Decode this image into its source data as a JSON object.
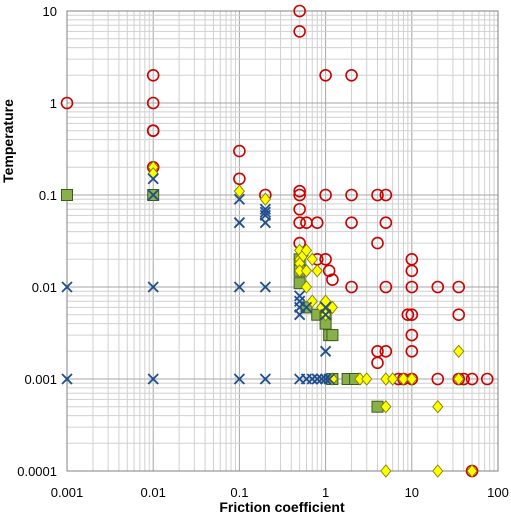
{
  "chart_data": {
    "type": "scatter",
    "xlabel": "Friction coefficient",
    "ylabel": "Temperature",
    "xscale": "log",
    "yscale": "log",
    "xlim": [
      0.001,
      100
    ],
    "ylim": [
      0.0001,
      10
    ],
    "x_ticks": [
      "0.001",
      "0.01",
      "0.1",
      "1",
      "10",
      "100"
    ],
    "y_ticks": [
      "0.0001",
      "0.001",
      "0.01",
      "0.1",
      "1",
      "10"
    ],
    "grid": true,
    "legend": "none",
    "series": [
      {
        "marker": "open-circle",
        "color": "#cc0000",
        "points": [
          [
            0.001,
            1
          ],
          [
            0.01,
            2
          ],
          [
            0.01,
            1
          ],
          [
            0.01,
            0.5
          ],
          [
            0.01,
            0.5
          ],
          [
            0.01,
            0.2
          ],
          [
            0.1,
            0.3
          ],
          [
            0.1,
            0.15
          ],
          [
            0.2,
            0.1
          ],
          [
            0.5,
            10
          ],
          [
            0.5,
            6
          ],
          [
            0.5,
            0.11
          ],
          [
            0.5,
            0.1
          ],
          [
            0.5,
            0.07
          ],
          [
            0.5,
            0.05
          ],
          [
            0.5,
            0.03
          ],
          [
            0.6,
            0.05
          ],
          [
            0.8,
            0.05
          ],
          [
            0.8,
            0.02
          ],
          [
            1,
            0.02
          ],
          [
            1,
            2
          ],
          [
            1,
            0.1
          ],
          [
            1.1,
            0.015
          ],
          [
            1.2,
            0.012
          ],
          [
            2,
            2
          ],
          [
            2,
            0.1
          ],
          [
            2,
            0.05
          ],
          [
            2,
            0.01
          ],
          [
            4,
            0.1
          ],
          [
            5,
            0.1
          ],
          [
            5,
            0.05
          ],
          [
            5,
            0.01
          ],
          [
            4,
            0.002
          ],
          [
            4,
            0.0015
          ],
          [
            5,
            0.002
          ],
          [
            4,
            0.03
          ],
          [
            10,
            0.02
          ],
          [
            10,
            0.015
          ],
          [
            10,
            0.01
          ],
          [
            9,
            0.005
          ],
          [
            10,
            0.005
          ],
          [
            10,
            0.003
          ],
          [
            10,
            0.002
          ],
          [
            7,
            0.001
          ],
          [
            8,
            0.001
          ],
          [
            10,
            0.001
          ],
          [
            20,
            0.01
          ],
          [
            20,
            0.001
          ],
          [
            35,
            0.01
          ],
          [
            35,
            0.005
          ],
          [
            35,
            0.001
          ],
          [
            40,
            0.001
          ],
          [
            50,
            0.001
          ],
          [
            75,
            0.001
          ],
          [
            50,
            0.0001
          ]
        ]
      },
      {
        "marker": "diamond",
        "color": "#ffff00",
        "points": [
          [
            0.01,
            0.2
          ],
          [
            0.01,
            0.17
          ],
          [
            0.1,
            0.11
          ],
          [
            0.2,
            0.09
          ],
          [
            0.5,
            0.025
          ],
          [
            0.5,
            0.02
          ],
          [
            0.5,
            0.018
          ],
          [
            0.5,
            0.015
          ],
          [
            0.55,
            0.022
          ],
          [
            0.6,
            0.025
          ],
          [
            0.6,
            0.015
          ],
          [
            0.7,
            0.02
          ],
          [
            0.8,
            0.015
          ],
          [
            0.6,
            0.01
          ],
          [
            0.7,
            0.007
          ],
          [
            0.9,
            0.006
          ],
          [
            1,
            0.007
          ],
          [
            1.2,
            0.006
          ],
          [
            1,
            0.005
          ],
          [
            1.2,
            0.001
          ],
          [
            2.5,
            0.001
          ],
          [
            3,
            0.001
          ],
          [
            5,
            0.001
          ],
          [
            6,
            0.001
          ],
          [
            8,
            0.001
          ],
          [
            10,
            0.001
          ],
          [
            35,
            0.002
          ],
          [
            35,
            0.001
          ],
          [
            5,
            0.0005
          ],
          [
            20,
            0.0005
          ],
          [
            5,
            0.0001
          ],
          [
            20,
            0.0001
          ],
          [
            50,
            0.0001
          ]
        ]
      },
      {
        "marker": "square",
        "color": "#8ab04a",
        "points": [
          [
            0.001,
            0.1
          ],
          [
            0.01,
            0.1
          ],
          [
            0.5,
            0.02
          ],
          [
            0.5,
            0.015
          ],
          [
            0.5,
            0.011
          ],
          [
            0.6,
            0.006
          ],
          [
            0.8,
            0.005
          ],
          [
            1,
            0.005
          ],
          [
            1,
            0.004
          ],
          [
            1,
            0.006
          ],
          [
            1.1,
            0.003
          ],
          [
            1.2,
            0.003
          ],
          [
            1.2,
            0.001
          ],
          [
            1.8,
            0.001
          ],
          [
            2.2,
            0.001
          ],
          [
            4,
            0.0005
          ]
        ]
      },
      {
        "marker": "x",
        "color": "#1f4e8c",
        "points": [
          [
            0.001,
            0.01
          ],
          [
            0.001,
            0.001
          ],
          [
            0.01,
            0.15
          ],
          [
            0.01,
            0.1
          ],
          [
            0.01,
            0.01
          ],
          [
            0.01,
            0.001
          ],
          [
            0.1,
            0.09
          ],
          [
            0.1,
            0.05
          ],
          [
            0.1,
            0.01
          ],
          [
            0.1,
            0.001
          ],
          [
            0.2,
            0.07
          ],
          [
            0.2,
            0.065
          ],
          [
            0.2,
            0.06
          ],
          [
            0.2,
            0.05
          ],
          [
            0.2,
            0.01
          ],
          [
            0.2,
            0.001
          ],
          [
            0.5,
            0.008
          ],
          [
            0.5,
            0.007
          ],
          [
            0.5,
            0.006
          ],
          [
            0.5,
            0.005
          ],
          [
            0.5,
            0.001
          ],
          [
            0.6,
            0.006
          ],
          [
            0.6,
            0.001
          ],
          [
            0.7,
            0.001
          ],
          [
            0.8,
            0.001
          ],
          [
            0.9,
            0.001
          ],
          [
            1,
            0.006
          ],
          [
            1,
            0.005
          ],
          [
            1,
            0.002
          ],
          [
            1,
            0.001
          ],
          [
            1.1,
            0.001
          ]
        ]
      }
    ]
  }
}
